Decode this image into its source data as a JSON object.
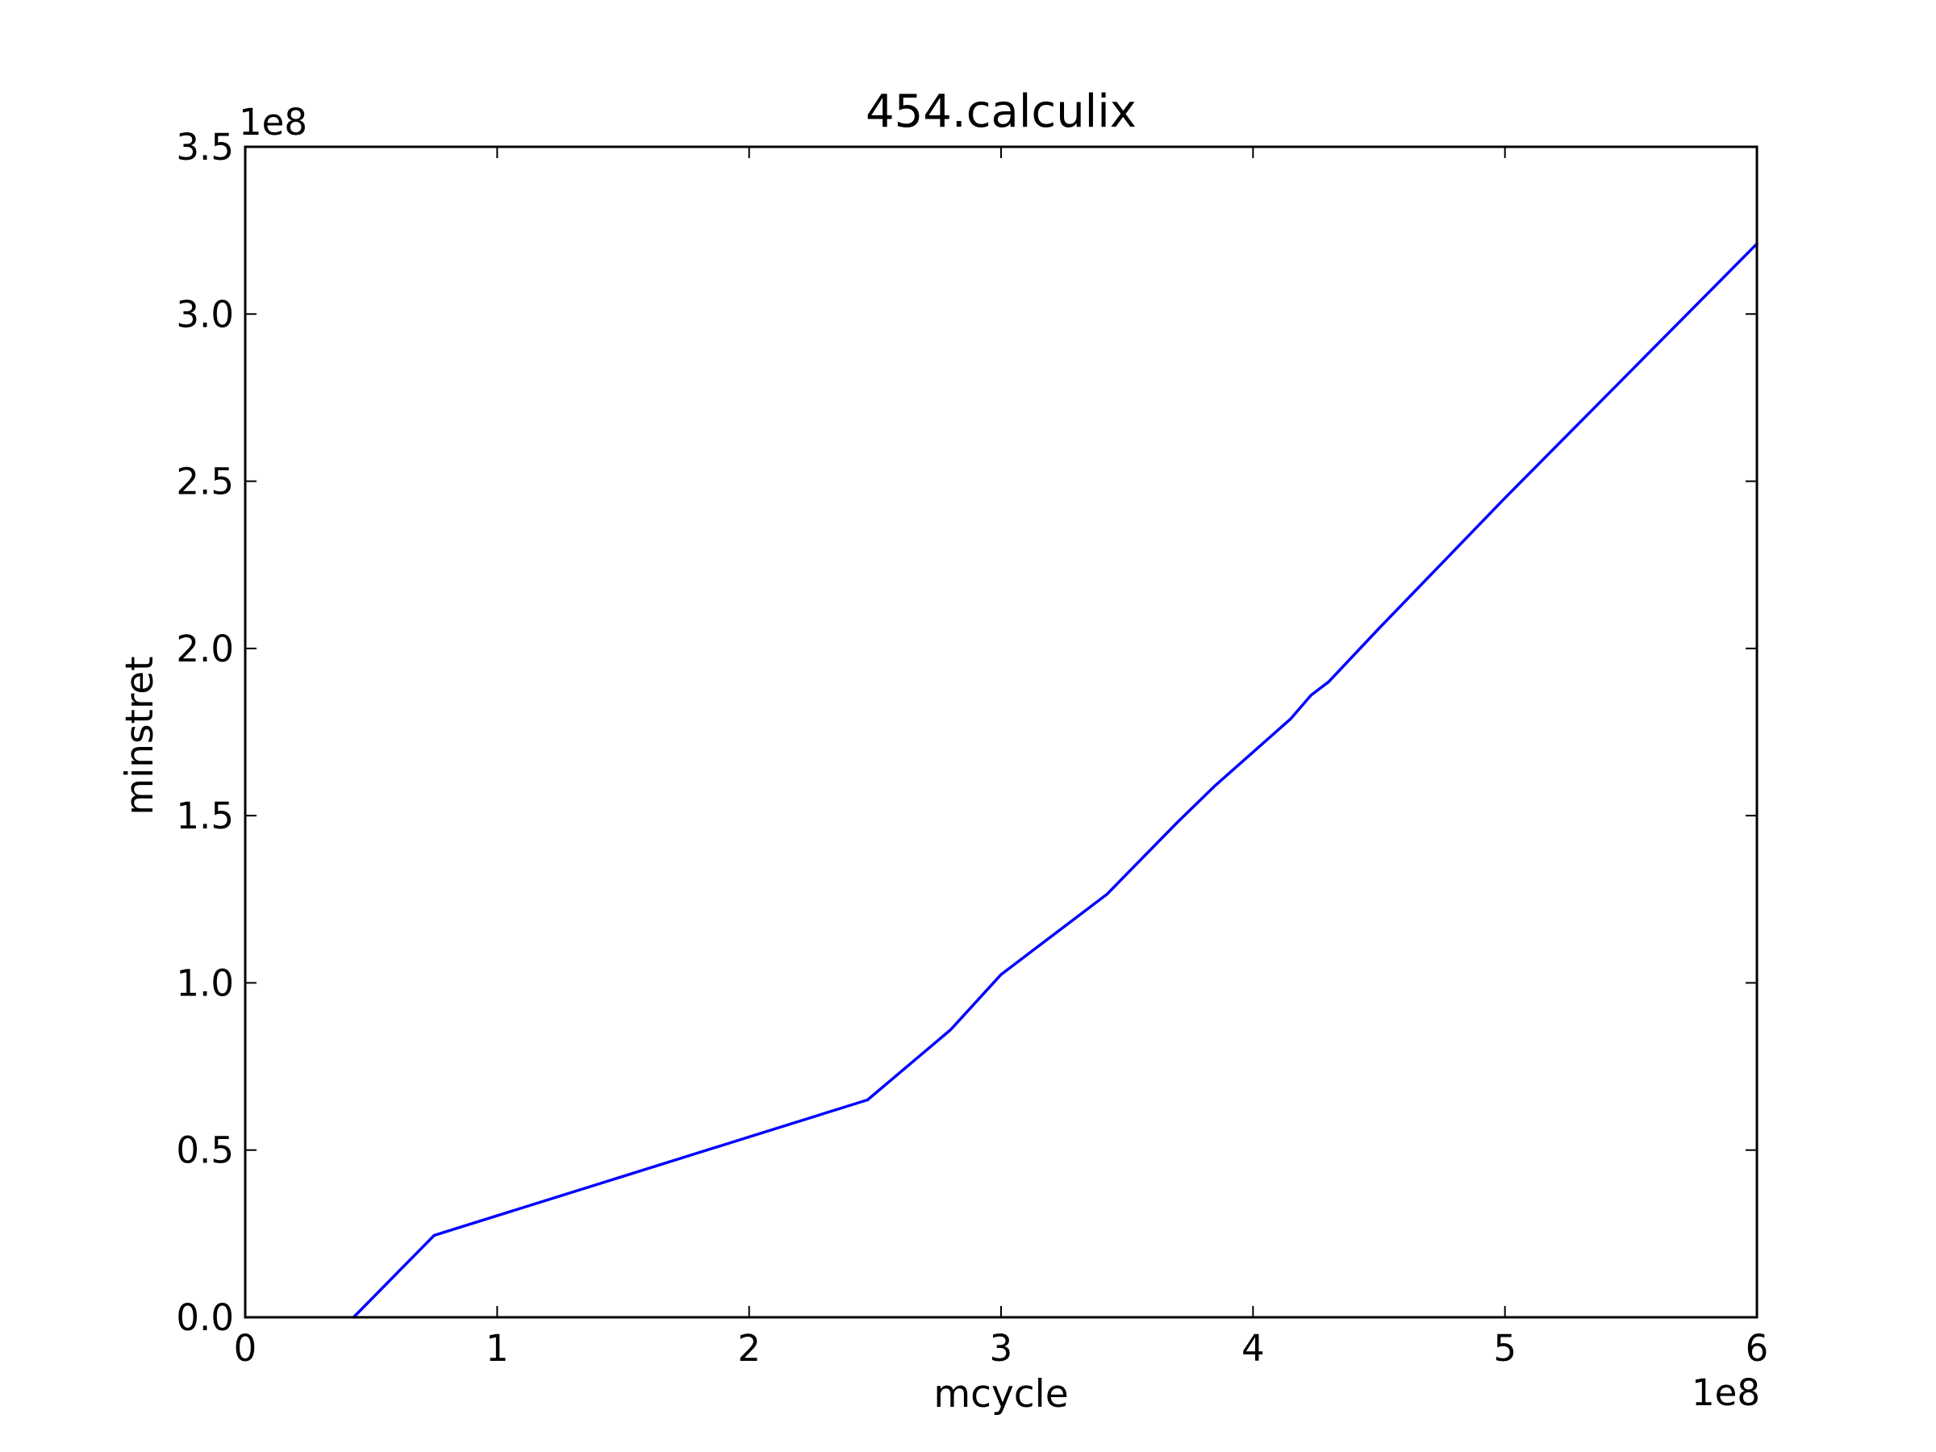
{
  "chart_data": {
    "type": "line",
    "title": "454.calculix",
    "xlabel": "mcycle",
    "ylabel": "minstret",
    "x_exponent_label": "1e8",
    "y_exponent_label": "1e8",
    "xlim": [
      0,
      6
    ],
    "ylim": [
      0,
      3.5
    ],
    "x_ticks": [
      0,
      1,
      2,
      3,
      4,
      5,
      6
    ],
    "x_tick_labels": [
      "0",
      "1",
      "2",
      "3",
      "4",
      "5",
      "6"
    ],
    "y_ticks": [
      0,
      0.5,
      1.0,
      1.5,
      2.0,
      2.5,
      3.0,
      3.5
    ],
    "y_tick_labels": [
      "0.0",
      "0.5",
      "1.0",
      "1.5",
      "2.0",
      "2.5",
      "3.0",
      "3.5"
    ],
    "grid": false,
    "series": [
      {
        "color": "#0000ff",
        "x": [
          0.43,
          0.75,
          2.47,
          2.8,
          3.0,
          3.42,
          3.7,
          3.85,
          4.0,
          4.15,
          4.23,
          4.3,
          4.5,
          5.0,
          5.5,
          6.0
        ],
        "y": [
          0.0,
          0.245,
          0.65,
          0.86,
          1.025,
          1.265,
          1.48,
          1.59,
          1.69,
          1.79,
          1.86,
          1.9,
          2.06,
          2.45,
          2.83,
          3.21
        ]
      }
    ]
  }
}
